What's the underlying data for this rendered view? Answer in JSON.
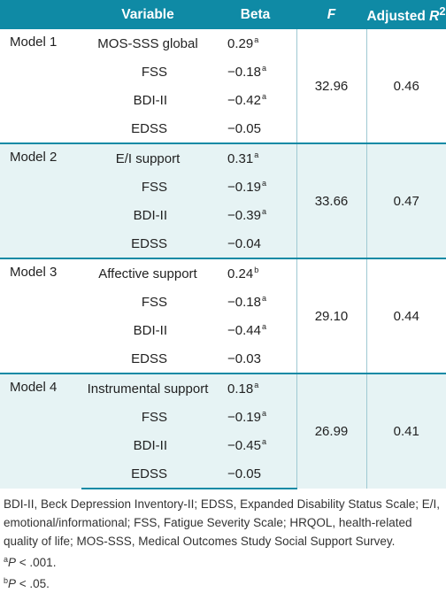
{
  "header": {
    "col1": "",
    "variable": "Variable",
    "beta": "Beta",
    "f": "F",
    "adjusted_prefix": "Adjusted ",
    "adjusted_r": "R",
    "adjusted_sup": "2"
  },
  "models": [
    {
      "label": "Model 1",
      "f": "32.96",
      "r2": "0.46",
      "rows": [
        {
          "variable": "MOS-SSS global",
          "beta": "0.29",
          "mark": "a"
        },
        {
          "variable": "FSS",
          "beta": "−0.18",
          "mark": "a"
        },
        {
          "variable": "BDI-II",
          "beta": "−0.42",
          "mark": "a"
        },
        {
          "variable": "EDSS",
          "beta": "−0.05",
          "mark": ""
        }
      ]
    },
    {
      "label": "Model 2",
      "f": "33.66",
      "r2": "0.47",
      "rows": [
        {
          "variable": "E/I support",
          "beta": "0.31",
          "mark": "a"
        },
        {
          "variable": "FSS",
          "beta": "−0.19",
          "mark": "a"
        },
        {
          "variable": "BDI-II",
          "beta": "−0.39",
          "mark": "a"
        },
        {
          "variable": "EDSS",
          "beta": "−0.04",
          "mark": ""
        }
      ]
    },
    {
      "label": "Model 3",
      "f": "29.10",
      "r2": "0.44",
      "rows": [
        {
          "variable": "Affective support",
          "beta": "0.24",
          "mark": "b"
        },
        {
          "variable": "FSS",
          "beta": "−0.18",
          "mark": "a"
        },
        {
          "variable": "BDI-II",
          "beta": "−0.44",
          "mark": "a"
        },
        {
          "variable": "EDSS",
          "beta": "−0.03",
          "mark": ""
        }
      ]
    },
    {
      "label": "Model 4",
      "f": "26.99",
      "r2": "0.41",
      "rows": [
        {
          "variable": "Instrumental support",
          "beta": "0.18",
          "mark": "a"
        },
        {
          "variable": "FSS",
          "beta": "−0.19",
          "mark": "a"
        },
        {
          "variable": "BDI-II",
          "beta": "−0.45",
          "mark": "a"
        },
        {
          "variable": "EDSS",
          "beta": "−0.05",
          "mark": ""
        }
      ]
    }
  ],
  "notes": {
    "abbreviations": "BDI-II, Beck Depression Inventory-II; EDSS, Expanded Disability Status Scale; E/I, emotional/informational; FSS, Fatigue Severity Scale; HRQOL, health-related quality of life; MOS-SSS, Medical Outcomes Study Social Support Survey.",
    "footnote_a_mark": "a",
    "footnote_a_p": "P",
    "footnote_a_text": " < .001.",
    "footnote_b_mark": "b",
    "footnote_b_p": "P",
    "footnote_b_text": " < .05."
  },
  "colors": {
    "header_bg": "#0f8aa5",
    "row_shade": "#e6f3f4",
    "separator": "#0f8aa5"
  }
}
